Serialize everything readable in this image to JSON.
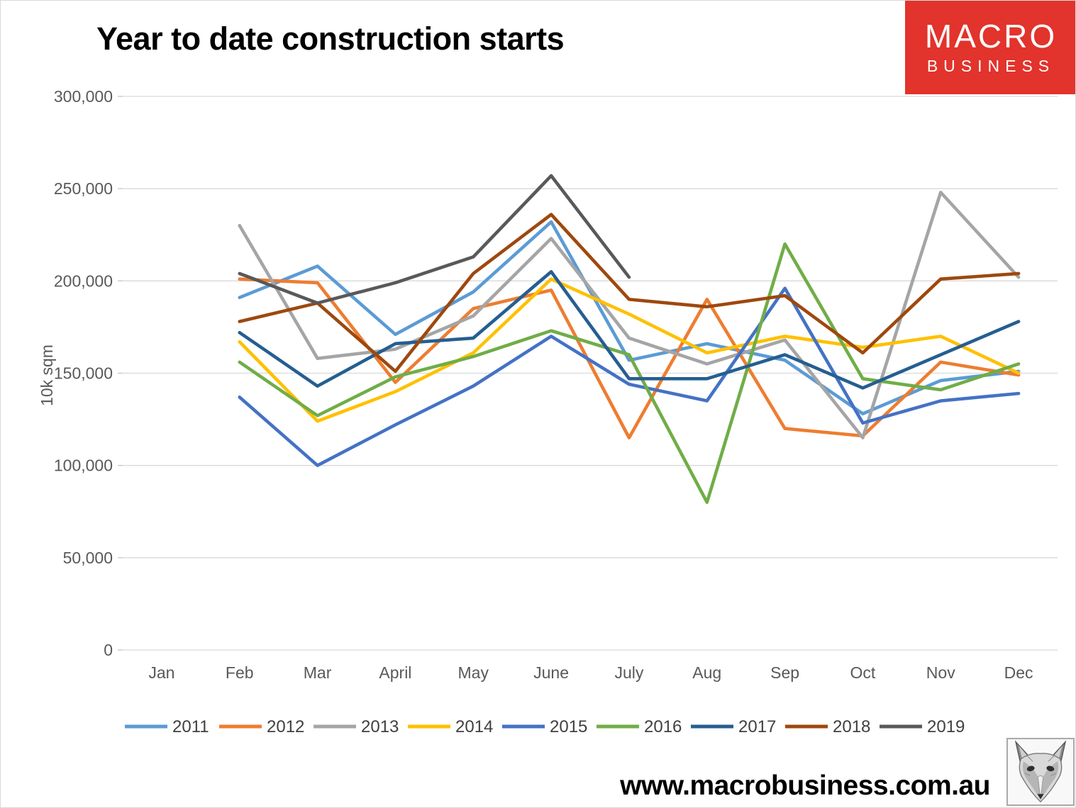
{
  "logo": {
    "line1": "MACRO",
    "line2": "BUSINESS",
    "bg_color": "#E2332C"
  },
  "footer": {
    "url": "www.macrobusiness.com.au",
    "fox_logo": "fox-head-sketch"
  },
  "chart_data": {
    "type": "line",
    "title": "Year to date construction starts",
    "ylabel": "10k sqm",
    "ylim": [
      0,
      300000
    ],
    "ytick_step": 50000,
    "ytick_labels": [
      "0",
      "50,000",
      "100,000",
      "150,000",
      "200,000",
      "250,000",
      "300,000"
    ],
    "categories": [
      "Jan",
      "Feb",
      "Mar",
      "April",
      "May",
      "June",
      "July",
      "Aug",
      "Sep",
      "Oct",
      "Nov",
      "Dec"
    ],
    "grid": true,
    "legend_position": "bottom",
    "axis_label_color": "#595959",
    "legend_text_color": "#404040",
    "gridline_color": "#d9d9d9",
    "series": [
      {
        "name": "2011",
        "color": "#5B9BD5",
        "values": [
          null,
          191000,
          208000,
          171000,
          194000,
          232000,
          157000,
          166000,
          157000,
          128000,
          146000,
          151000
        ]
      },
      {
        "name": "2012",
        "color": "#ED7D31",
        "values": [
          null,
          201000,
          199000,
          145000,
          185000,
          195000,
          115000,
          190000,
          120000,
          116000,
          156000,
          149000
        ]
      },
      {
        "name": "2013",
        "color": "#A5A5A5",
        "values": [
          null,
          230000,
          158000,
          163000,
          181000,
          223000,
          169000,
          155000,
          168000,
          115000,
          248000,
          202000
        ]
      },
      {
        "name": "2014",
        "color": "#FFC000",
        "values": [
          null,
          167000,
          124000,
          140000,
          161000,
          201000,
          182000,
          161000,
          170000,
          164000,
          170000,
          150000
        ]
      },
      {
        "name": "2015",
        "color": "#4472C4",
        "values": [
          null,
          137000,
          100000,
          122000,
          143000,
          170000,
          144000,
          135000,
          196000,
          123000,
          135000,
          139000
        ]
      },
      {
        "name": "2016",
        "color": "#70AD47",
        "values": [
          null,
          156000,
          127000,
          148000,
          159000,
          173000,
          160000,
          80000,
          220000,
          147000,
          141000,
          155000
        ]
      },
      {
        "name": "2017",
        "color": "#255E91",
        "values": [
          null,
          172000,
          143000,
          166000,
          169000,
          205000,
          147000,
          147000,
          160000,
          142000,
          160000,
          178000
        ]
      },
      {
        "name": "2018",
        "color": "#9E480E",
        "values": [
          null,
          178000,
          188000,
          151000,
          204000,
          236000,
          190000,
          186000,
          192000,
          161000,
          201000,
          204000
        ]
      },
      {
        "name": "2019",
        "color": "#595959",
        "values": [
          null,
          204000,
          188000,
          199000,
          213000,
          257000,
          202000,
          null,
          null,
          null,
          null,
          null
        ]
      }
    ]
  }
}
